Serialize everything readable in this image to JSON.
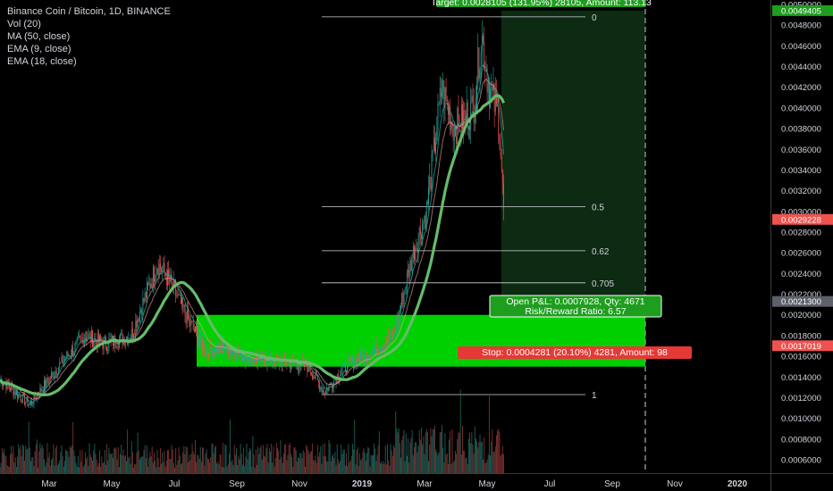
{
  "legend": {
    "title": "Binance Coin / Bitcoin, 1D, BINANCE",
    "vol": "Vol (20)",
    "ma": "MA (50, close)",
    "ema9": "EMA (9, close)",
    "ema18": "EMA (18, close)"
  },
  "colors": {
    "background": "#000000",
    "up": "#26a69a",
    "down": "#ef5350",
    "ma": "#66bb6a",
    "zone_green": "#00d000",
    "target_zone": "#0d2a12",
    "target_label": "#1e9e1e",
    "stop_label": "#e53935",
    "text": "#d1d4dc",
    "fib_line": "#d1d4dc"
  },
  "chart_data": {
    "type": "candlestick",
    "x_axis": {
      "ticks": [
        "Mar",
        "May",
        "Jul",
        "Sep",
        "Nov",
        "2019",
        "Mar",
        "May",
        "Jul",
        "Sep",
        "Nov",
        "2020"
      ]
    },
    "y_axis": {
      "ticks": [
        "0.0050000",
        "0.0048000",
        "0.0046000",
        "0.0044000",
        "0.0042000",
        "0.0040000",
        "0.0038000",
        "0.0036000",
        "0.0034000",
        "0.0032000",
        "0.0030000",
        "0.0028000",
        "0.0026000",
        "0.0024000",
        "0.0022000",
        "0.0020000",
        "0.0018000",
        "0.0016000",
        "0.0014000",
        "0.0012000",
        "0.0010000",
        "0.0008000",
        "0.0006000"
      ],
      "range": [
        0.0005,
        0.005
      ],
      "price_labels": [
        {
          "text": "0.0049405",
          "value": 0.0049405,
          "color": "#1e9e1e"
        },
        {
          "text": "0.0029228",
          "value": 0.0029228,
          "color": "#ef5350"
        },
        {
          "text": "0.0021300",
          "value": 0.00213,
          "color": "#5d606b"
        },
        {
          "text": "0.0017019",
          "value": 0.0017019,
          "color": "#ef5350"
        }
      ]
    },
    "fib_levels": [
      {
        "label": "0",
        "value": 0.00488
      },
      {
        "label": "0.5",
        "value": 0.003045
      },
      {
        "label": "0.62",
        "value": 0.00262
      },
      {
        "label": "0.705",
        "value": 0.00231
      },
      {
        "label": "1",
        "value": 0.00123
      }
    ],
    "annotations": {
      "target": "Target: 0.0028105 (131.95%) 28105, Amount: 113.13",
      "open_pnl": "Open P&L: 0.0007928, Qty: 4671",
      "risk_reward": "Risk/Reward Ratio: 6.57",
      "stop": "Stop: 0.0004281 (20.10%) 4281, Amount: 98"
    },
    "position": {
      "entry": 0.002,
      "stop": 0.0015,
      "target": 0.0049405
    },
    "ohlc_keypoints": [
      {
        "date": "2018-01-15",
        "close": 0.00136
      },
      {
        "date": "2018-02-10",
        "close": 0.00113
      },
      {
        "date": "2018-03-10",
        "close": 0.0015
      },
      {
        "date": "2018-04-05",
        "close": 0.0018
      },
      {
        "date": "2018-04-25",
        "close": 0.00172
      },
      {
        "date": "2018-05-20",
        "close": 0.0018
      },
      {
        "date": "2018-06-15",
        "close": 0.0025
      },
      {
        "date": "2018-06-28",
        "close": 0.0023
      },
      {
        "date": "2018-07-15",
        "close": 0.00195
      },
      {
        "date": "2018-08-01",
        "close": 0.00165
      },
      {
        "date": "2018-08-20",
        "close": 0.00168
      },
      {
        "date": "2018-09-15",
        "close": 0.00157
      },
      {
        "date": "2018-10-15",
        "close": 0.00155
      },
      {
        "date": "2018-11-10",
        "close": 0.0015
      },
      {
        "date": "2018-11-25",
        "close": 0.00125
      },
      {
        "date": "2018-12-15",
        "close": 0.0015
      },
      {
        "date": "2019-01-10",
        "close": 0.00165
      },
      {
        "date": "2019-02-01",
        "close": 0.0018
      },
      {
        "date": "2019-02-20",
        "close": 0.0026
      },
      {
        "date": "2019-03-05",
        "close": 0.003
      },
      {
        "date": "2019-03-20",
        "close": 0.0042
      },
      {
        "date": "2019-04-01",
        "close": 0.0038
      },
      {
        "date": "2019-04-20",
        "close": 0.004
      },
      {
        "date": "2019-04-28",
        "close": 0.0047
      },
      {
        "date": "2019-05-05",
        "close": 0.0042
      },
      {
        "date": "2019-05-15",
        "close": 0.0039
      },
      {
        "date": "2019-05-20",
        "close": 0.00292
      }
    ]
  }
}
